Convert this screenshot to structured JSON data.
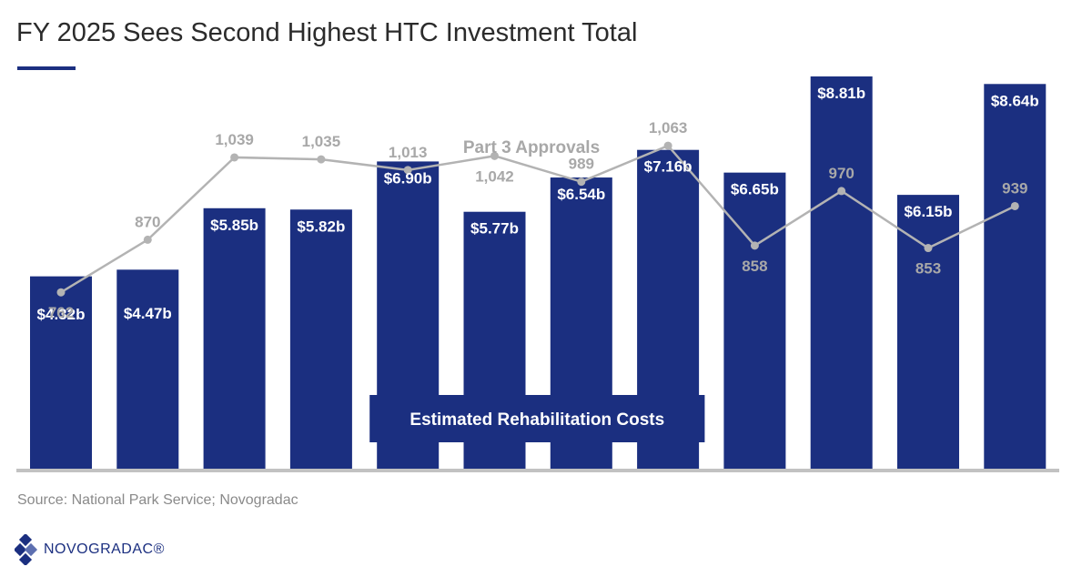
{
  "title": "FY 2025 Sees Second Highest HTC Investment Total",
  "source": "Source: National Park Service; Novogradac",
  "logo_text": "NOVOGRADAC®",
  "colors": {
    "bar": "#1b2f80",
    "line": "#b3b3b3",
    "line_label": "#a8a8a8",
    "baseline": "#c2c2c2"
  },
  "chart_data": {
    "type": "bar",
    "categories": [
      "",
      "",
      "",
      "",
      "",
      "",
      "",
      "",
      "",
      "",
      "",
      ""
    ],
    "series": [
      {
        "name": "Estimated Rehabilitation Costs",
        "type": "bar",
        "values": [
          4.32,
          4.47,
          5.85,
          5.82,
          6.9,
          5.77,
          6.54,
          7.16,
          6.65,
          8.81,
          6.15,
          8.64
        ],
        "labels": [
          "$4.32b",
          "$4.47b",
          "$5.85b",
          "$5.82b",
          "$6.90b",
          "$5.77b",
          "$6.54b",
          "$7.16b",
          "$6.65b",
          "$8.81b",
          "$6.15b",
          "$8.64b"
        ]
      },
      {
        "name": "Part 3 Approvals",
        "type": "line",
        "values": [
          762,
          870,
          1039,
          1035,
          1013,
          1042,
          989,
          1063,
          858,
          970,
          853,
          939
        ],
        "labels": [
          "762",
          "870",
          "1,039",
          "1,035",
          "1,013",
          "1,042",
          "989",
          "1,063",
          "858",
          "970",
          "853",
          "939"
        ]
      }
    ],
    "bar_ylim": [
      0,
      9.3
    ],
    "line_ylim": [
      400,
      1250
    ],
    "legend": "inline labels"
  }
}
